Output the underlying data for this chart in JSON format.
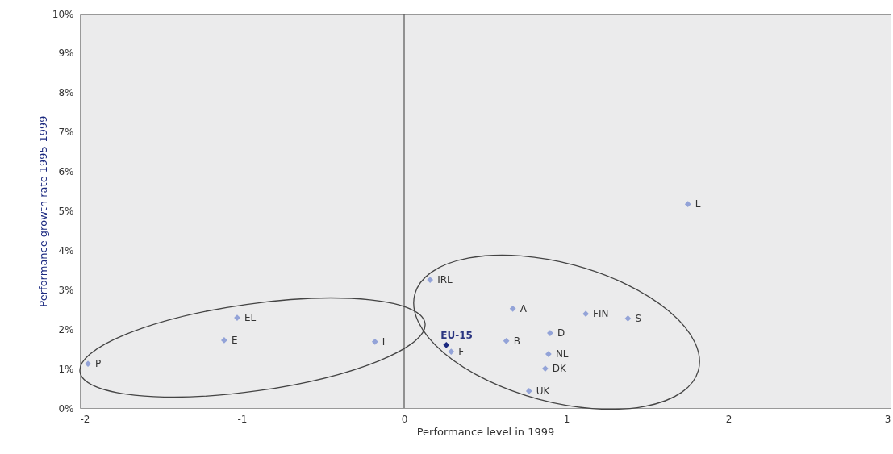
{
  "chart_data": {
    "type": "scatter",
    "xlabel": "Performance level in 1999",
    "ylabel": "Performance growth rate 1995-1999",
    "x": [
      -1.95,
      -1.11,
      -1.03,
      -0.18,
      0.16,
      0.26,
      0.29,
      0.63,
      0.67,
      0.9,
      0.89,
      0.87,
      0.77,
      1.12,
      1.38,
      1.75
    ],
    "values": [
      1.12,
      1.72,
      2.29,
      1.68,
      3.25,
      1.6,
      1.43,
      1.7,
      2.52,
      1.9,
      1.37,
      1.0,
      0.43,
      2.39,
      2.27,
      5.17
    ],
    "colors": [
      "#93a3d8",
      "#93a3d8",
      "#93a3d8",
      "#93a3d8",
      "#93a3d8",
      "#1c2a80",
      "#93a3d8",
      "#93a3d8",
      "#93a3d8",
      "#93a3d8",
      "#93a3d8",
      "#93a3d8",
      "#93a3d8",
      "#93a3d8",
      "#93a3d8",
      "#93a3d8"
    ],
    "marker": "diamond",
    "xlim": [
      -2,
      3
    ],
    "xticks": [
      -2,
      -1,
      0,
      1,
      2,
      3
    ],
    "ylim": [
      0,
      10
    ],
    "yticks": [
      {
        "value": 0,
        "label": "0%"
      },
      {
        "value": 1,
        "label": "1%"
      },
      {
        "value": 2,
        "label": "2%"
      },
      {
        "value": 3,
        "label": "3%"
      },
      {
        "value": 4,
        "label": "4%"
      },
      {
        "value": 5,
        "label": "5%"
      },
      {
        "value": 6,
        "label": "6%"
      },
      {
        "value": 7,
        "label": "7%"
      },
      {
        "value": 8,
        "label": "8%"
      },
      {
        "value": 9,
        "label": "9%"
      },
      {
        "value": 10,
        "label": "10%"
      }
    ],
    "grid": false,
    "ref_lines": [
      {
        "axis": "x",
        "value": 0,
        "color": "#555555"
      }
    ],
    "annotations": [
      {
        "text": "P",
        "x": -1.95,
        "y": 1.12
      },
      {
        "text": "E",
        "x": -1.11,
        "y": 1.72
      },
      {
        "text": "EL",
        "x": -1.03,
        "y": 2.29
      },
      {
        "text": "I",
        "x": -0.18,
        "y": 1.68
      },
      {
        "text": "IRL",
        "x": 0.16,
        "y": 3.25
      },
      {
        "text": "EU-15",
        "x": 0.26,
        "y": 1.6
      },
      {
        "text": "F",
        "x": 0.29,
        "y": 1.43
      },
      {
        "text": "B",
        "x": 0.63,
        "y": 1.7
      },
      {
        "text": "A",
        "x": 0.67,
        "y": 2.52
      },
      {
        "text": "D",
        "x": 0.9,
        "y": 1.9
      },
      {
        "text": "NL",
        "x": 0.89,
        "y": 1.37
      },
      {
        "text": "DK",
        "x": 0.87,
        "y": 1.0
      },
      {
        "text": "UK",
        "x": 0.77,
        "y": 0.43
      },
      {
        "text": "FIN",
        "x": 1.12,
        "y": 2.39
      },
      {
        "text": "S",
        "x": 1.38,
        "y": 2.27
      },
      {
        "text": "L",
        "x": 1.75,
        "y": 5.17
      }
    ]
  }
}
